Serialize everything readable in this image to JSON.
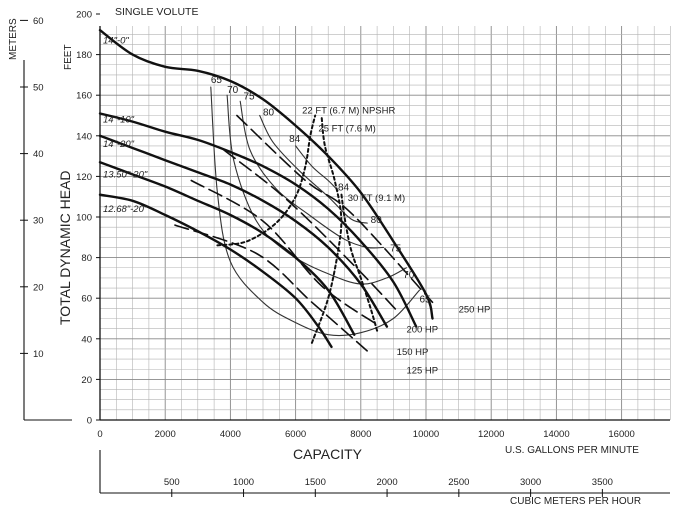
{
  "chart_data": {
    "type": "line",
    "title": "SINGLE VOLUTE",
    "xlabel": "CAPACITY",
    "ylabel": "TOTAL DYNAMIC HEAD",
    "y_unit": "FEET",
    "y2_unit": "METERS",
    "x_unit": "U.S. GALLONS PER MINUTE",
    "x2_unit": "CUBIC METERS PER HOUR",
    "xlim": [
      0,
      17500
    ],
    "ylim": [
      0,
      200
    ],
    "grid": true,
    "x_ticks": [
      "0",
      "2000",
      "4000",
      "6000",
      "8000",
      "10000",
      "12000",
      "14000",
      "16000"
    ],
    "y_ticks": [
      "0",
      "20",
      "40",
      "60",
      "80",
      "100",
      "120",
      "140",
      "160",
      "180",
      "200"
    ],
    "meter_ticks": [
      "10",
      "20",
      "30",
      "40",
      "50",
      "60"
    ],
    "m3h_ticks": [
      "500",
      "1000",
      "1500",
      "2000",
      "2500",
      "3000",
      "3500"
    ],
    "head_curves": [
      {
        "label": "14\"-0\"",
        "points": [
          [
            0,
            192
          ],
          [
            1000,
            180
          ],
          [
            2000,
            174
          ],
          [
            3000,
            172
          ],
          [
            4000,
            167
          ],
          [
            5000,
            158
          ],
          [
            6000,
            145
          ],
          [
            7000,
            130
          ],
          [
            8000,
            112
          ],
          [
            9000,
            88
          ],
          [
            10000,
            62
          ],
          [
            10200,
            50
          ]
        ]
      },
      {
        "label": "14\"-10\"",
        "points": [
          [
            0,
            151
          ],
          [
            1000,
            147
          ],
          [
            2000,
            142
          ],
          [
            3000,
            138
          ],
          [
            4000,
            132
          ],
          [
            5000,
            125
          ],
          [
            6000,
            116
          ],
          [
            7000,
            104
          ],
          [
            8000,
            88
          ],
          [
            9000,
            68
          ],
          [
            9700,
            46
          ]
        ]
      },
      {
        "label": "14\"-20\"",
        "points": [
          [
            0,
            140
          ],
          [
            1000,
            134
          ],
          [
            2000,
            128
          ],
          [
            3000,
            122
          ],
          [
            4000,
            116
          ],
          [
            5000,
            108
          ],
          [
            6000,
            98
          ],
          [
            7000,
            85
          ],
          [
            8000,
            67
          ],
          [
            8800,
            46
          ]
        ]
      },
      {
        "label": "13.50\"-20\"",
        "points": [
          [
            0,
            127
          ],
          [
            1000,
            121
          ],
          [
            2000,
            115
          ],
          [
            3000,
            108
          ],
          [
            4000,
            101
          ],
          [
            5000,
            92
          ],
          [
            6000,
            80
          ],
          [
            7000,
            64
          ],
          [
            7800,
            42
          ]
        ]
      },
      {
        "label": "12.68\"-20\"",
        "points": [
          [
            0,
            111
          ],
          [
            1000,
            108
          ],
          [
            2000,
            101
          ],
          [
            3000,
            93
          ],
          [
            4000,
            84
          ],
          [
            5000,
            73
          ],
          [
            6000,
            60
          ],
          [
            6700,
            46
          ],
          [
            7100,
            36
          ]
        ]
      }
    ],
    "efficiency_curves": [
      {
        "label": "65",
        "points": [
          [
            3400,
            164
          ],
          [
            3600,
            112
          ],
          [
            4000,
            78
          ],
          [
            5000,
            58
          ],
          [
            6000,
            48
          ],
          [
            7000,
            42
          ],
          [
            8000,
            43
          ],
          [
            9000,
            50
          ],
          [
            9800,
            64
          ]
        ]
      },
      {
        "label": "70",
        "points": [
          [
            3900,
            160
          ],
          [
            4100,
            128
          ],
          [
            4800,
            98
          ],
          [
            5800,
            82
          ],
          [
            7000,
            72
          ],
          [
            8000,
            67
          ],
          [
            8800,
            70
          ],
          [
            9400,
            75
          ]
        ]
      },
      {
        "label": "75",
        "points": [
          [
            4300,
            157
          ],
          [
            4600,
            133
          ],
          [
            5400,
            114
          ],
          [
            6500,
            100
          ],
          [
            7500,
            89
          ],
          [
            8200,
            85
          ],
          [
            8700,
            85
          ]
        ]
      },
      {
        "label": "80",
        "points": [
          [
            4900,
            150
          ],
          [
            5300,
            137
          ],
          [
            6100,
            123
          ],
          [
            7000,
            110
          ],
          [
            7700,
            99
          ],
          [
            8200,
            97
          ]
        ]
      },
      {
        "label": "84",
        "points": [
          [
            6000,
            135
          ],
          [
            6500,
            125
          ],
          [
            7000,
            118
          ],
          [
            7300,
            113
          ]
        ]
      }
    ],
    "efficiency_labels": [
      {
        "label": "65",
        "x": 3400,
        "y": 166
      },
      {
        "label": "70",
        "x": 3900,
        "y": 161
      },
      {
        "label": "75",
        "x": 4400,
        "y": 158
      },
      {
        "label": "80",
        "x": 5000,
        "y": 150
      },
      {
        "label": "84",
        "x": 5800,
        "y": 137
      },
      {
        "label": "84",
        "x": 7300,
        "y": 113
      },
      {
        "label": "80",
        "x": 8300,
        "y": 97
      },
      {
        "label": "75",
        "x": 8900,
        "y": 83
      },
      {
        "label": "70",
        "x": 9300,
        "y": 70
      },
      {
        "label": "65",
        "x": 9800,
        "y": 58
      }
    ],
    "npshr_curves": [
      {
        "label": "22 FT (6.7 M) NPSHR",
        "points": [
          [
            3600,
            86
          ],
          [
            4500,
            88
          ],
          [
            5400,
            97
          ],
          [
            6000,
            110
          ],
          [
            6300,
            125
          ],
          [
            6450,
            140
          ],
          [
            6600,
            150
          ]
        ]
      },
      {
        "label": "25 FT (7.6 M)",
        "points": [
          [
            6500,
            38
          ],
          [
            7000,
            60
          ],
          [
            7300,
            83
          ],
          [
            7400,
            100
          ],
          [
            7200,
            118
          ],
          [
            6900,
            135
          ],
          [
            6800,
            149
          ]
        ]
      },
      {
        "label": "30 FT (9.1 M)",
        "points": [
          [
            8500,
            44
          ],
          [
            8300,
            55
          ],
          [
            8000,
            70
          ],
          [
            7700,
            84
          ],
          [
            7500,
            100
          ],
          [
            7400,
            112
          ]
        ]
      }
    ],
    "horsepower_lines": [
      {
        "label": "250 HP",
        "points": [
          [
            4200,
            150
          ],
          [
            6300,
            118
          ],
          [
            7700,
            102
          ],
          [
            10200,
            58
          ]
        ]
      },
      {
        "label": "200 HP",
        "points": [
          [
            3800,
            133
          ],
          [
            5700,
            109
          ],
          [
            7800,
            76
          ],
          [
            9100,
            54
          ]
        ]
      },
      {
        "label": "150 HP",
        "points": [
          [
            2800,
            118
          ],
          [
            5000,
            98
          ],
          [
            6800,
            66
          ],
          [
            8500,
            47
          ]
        ]
      },
      {
        "label": "125 HP",
        "points": [
          [
            2300,
            96
          ],
          [
            4800,
            82
          ],
          [
            6500,
            58
          ],
          [
            8200,
            34
          ]
        ]
      }
    ]
  }
}
